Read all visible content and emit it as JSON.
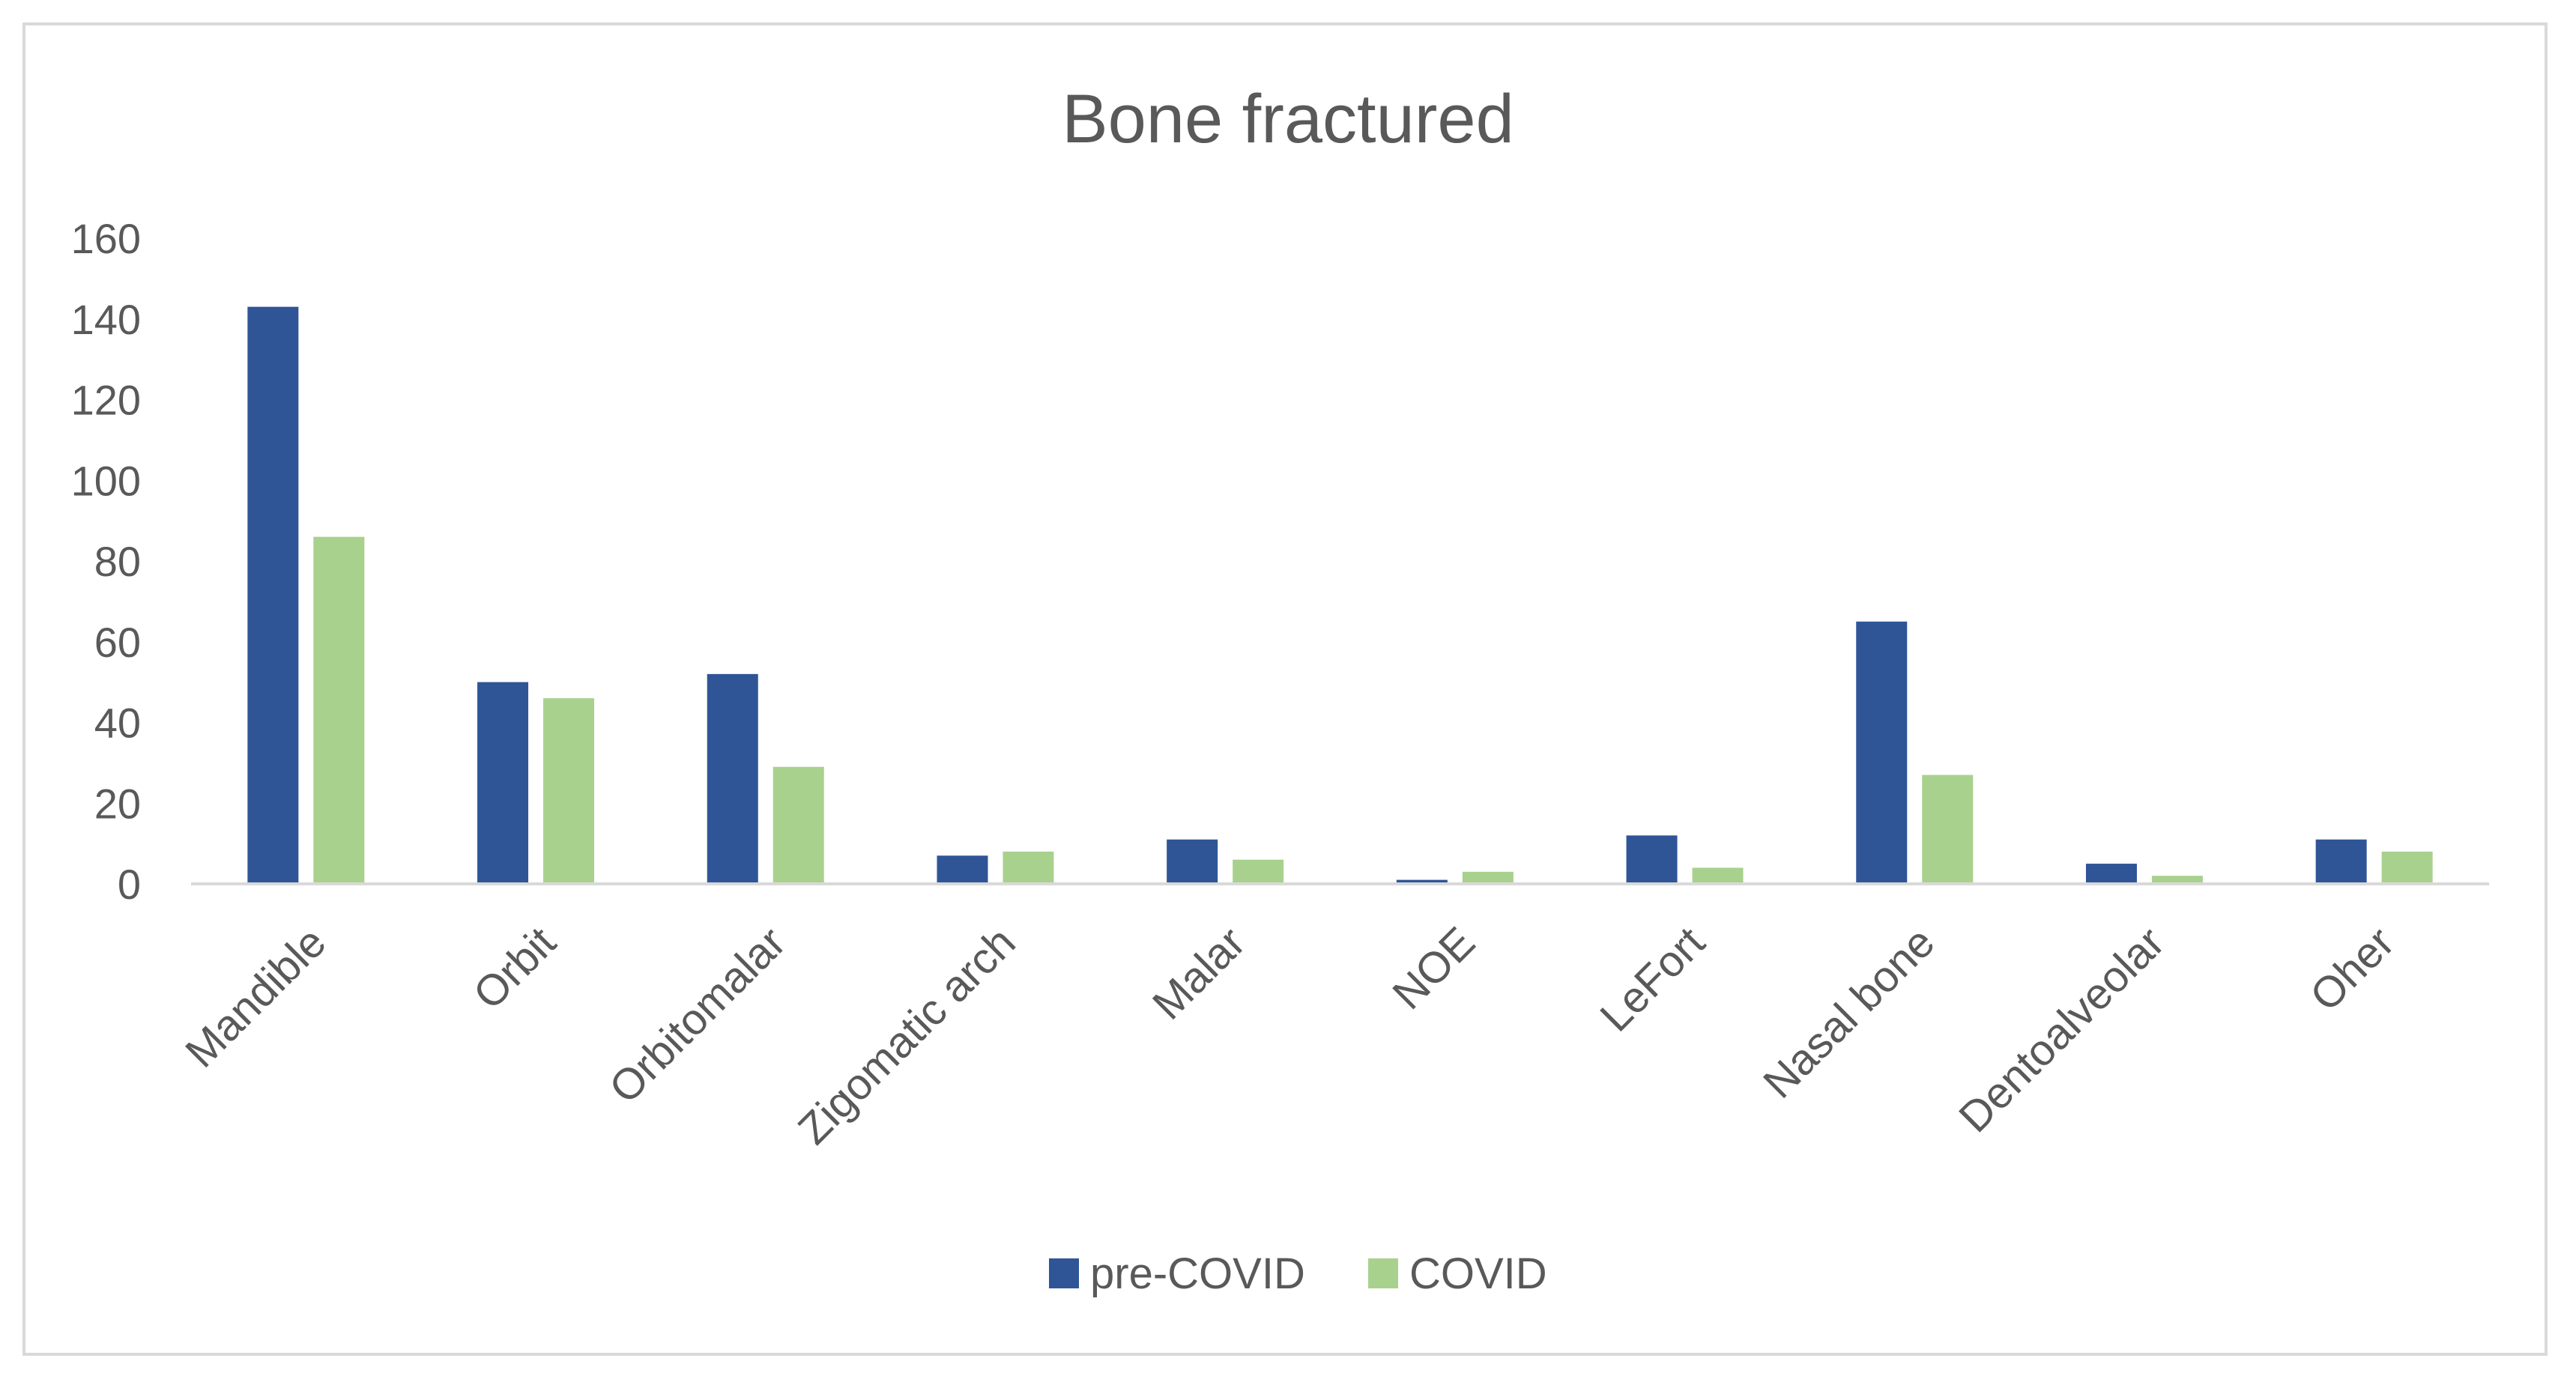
{
  "chart_data": {
    "type": "bar",
    "title": "Bone fractured",
    "xlabel": "",
    "ylabel": "",
    "ylim": [
      0,
      160
    ],
    "yticks": [
      0,
      20,
      40,
      60,
      80,
      100,
      120,
      140,
      160
    ],
    "grid": false,
    "legend_position": "bottom",
    "categories": [
      "Mandible",
      "Orbit",
      "Orbitomalar",
      "Zigomatic arch",
      "Malar",
      "NOE",
      "LeFort",
      "Nasal bone",
      "Dentoalveolar",
      "Oher"
    ],
    "series": [
      {
        "name": "pre-COVID",
        "color": "#2f5597",
        "values": [
          143,
          50,
          52,
          7,
          11,
          1,
          12,
          65,
          5,
          11
        ]
      },
      {
        "name": "COVID",
        "color": "#a9d18e",
        "values": [
          86,
          46,
          29,
          8,
          6,
          3,
          4,
          27,
          2,
          8
        ]
      }
    ]
  }
}
